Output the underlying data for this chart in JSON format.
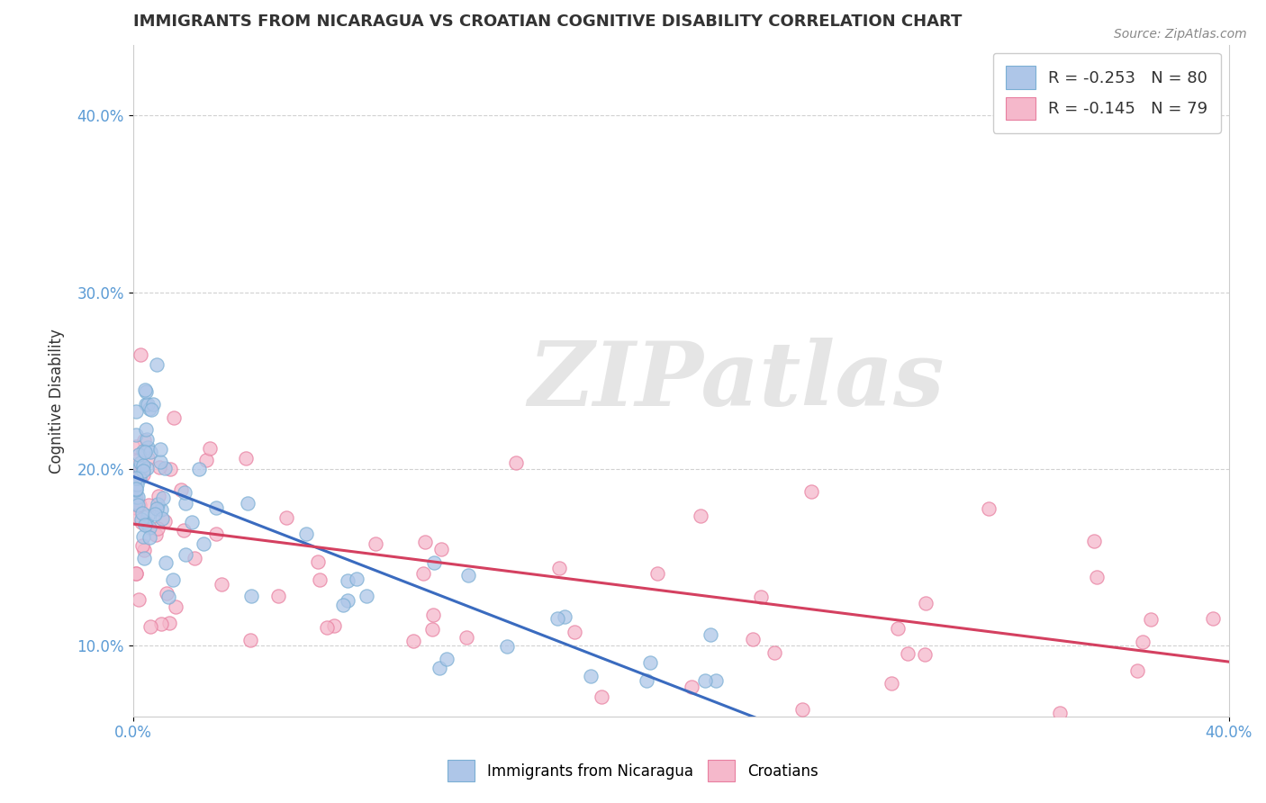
{
  "title": "IMMIGRANTS FROM NICARAGUA VS CROATIAN COGNITIVE DISABILITY CORRELATION CHART",
  "source": "Source: ZipAtlas.com",
  "ylabel": "Cognitive Disability",
  "xlim": [
    0.0,
    0.4
  ],
  "ylim": [
    0.06,
    0.44
  ],
  "xtick_positions": [
    0.0,
    0.4
  ],
  "xtick_labels": [
    "0.0%",
    "40.0%"
  ],
  "ytick_positions": [
    0.1,
    0.2,
    0.3,
    0.4
  ],
  "ytick_labels": [
    "10.0%",
    "20.0%",
    "30.0%",
    "40.0%"
  ],
  "blue_fill": "#aec6e8",
  "pink_fill": "#f5b8cb",
  "blue_edge": "#7bafd4",
  "pink_edge": "#e87fa0",
  "trend_blue": "#3a6bbf",
  "trend_pink": "#d44060",
  "R_blue": -0.253,
  "N_blue": 80,
  "R_pink": -0.145,
  "N_pink": 79,
  "watermark": "ZIPatlas",
  "background_color": "#ffffff",
  "grid_color": "#cccccc",
  "axis_tick_color": "#5b9bd5",
  "title_color": "#333333",
  "ylabel_color": "#333333"
}
